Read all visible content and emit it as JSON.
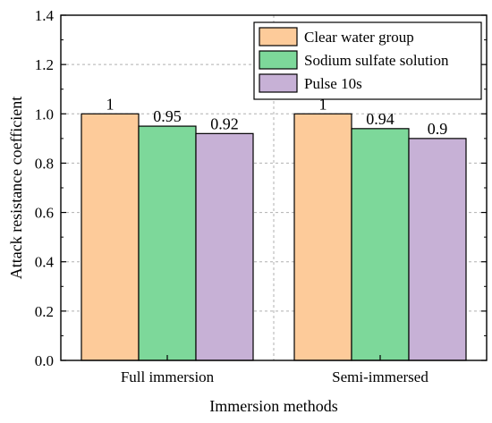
{
  "chart_data": {
    "type": "bar",
    "title": "",
    "xlabel": "Immersion methods",
    "ylabel": "Attack resistance coefficient",
    "categories": [
      "Full immersion",
      "Semi-immersed"
    ],
    "series": [
      {
        "name": "Clear water group",
        "values": [
          1,
          1
        ],
        "labels": [
          "1",
          "1"
        ],
        "color": "#FDCB9A"
      },
      {
        "name": "Sodium sulfate solution",
        "values": [
          0.95,
          0.94
        ],
        "labels": [
          "0.95",
          "0.94"
        ],
        "color": "#7DD89A"
      },
      {
        "name": "Pulse 10s",
        "values": [
          0.92,
          0.9
        ],
        "labels": [
          "0.92",
          "0.9"
        ],
        "color": "#C7B1D6"
      }
    ],
    "ylim": [
      0,
      1.4
    ],
    "yticks": [
      0.0,
      0.2,
      0.4,
      0.6,
      0.8,
      1.0,
      1.2,
      1.4
    ],
    "ytick_labels": [
      "0.0",
      "0.2",
      "0.4",
      "0.6",
      "0.8",
      "1.0",
      "1.2",
      "1.4"
    ],
    "grid": true,
    "legend_position": "top-right"
  }
}
